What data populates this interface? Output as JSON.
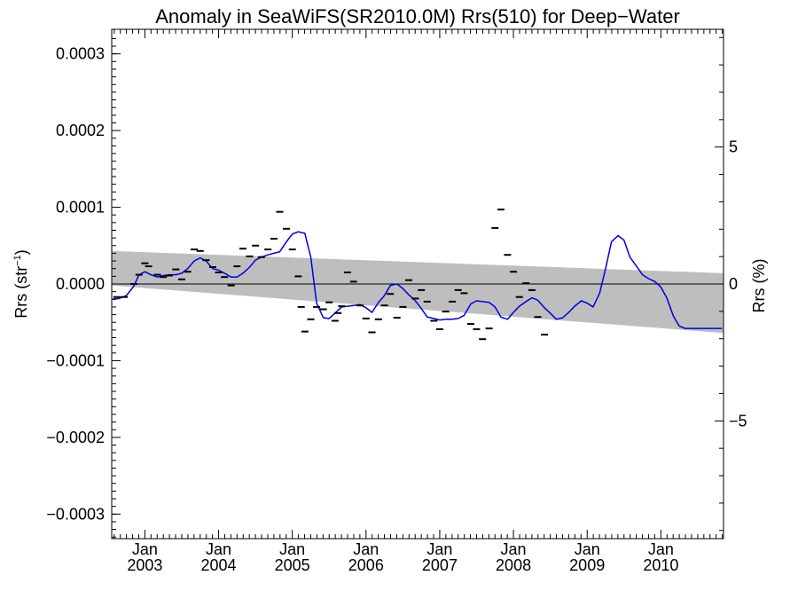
{
  "chart_data": {
    "type": "line",
    "title": "Anomaly in SeaWiFS(SR2010.0M) Rrs(510) for Deep−Water",
    "ylabel_left_main": "Rrs (str",
    "ylabel_left_sup": "−1",
    "ylabel_left_end": ")",
    "ylabel_right": "Rrs (%)",
    "x_tick_month": "Jan",
    "x_tick_years": [
      "2003",
      "2004",
      "2005",
      "2006",
      "2007",
      "2008",
      "2009",
      "2010"
    ],
    "y_left_ticks": [
      {
        "value": 0.0003,
        "label": "0.0003"
      },
      {
        "value": 0.0002,
        "label": "0.0002"
      },
      {
        "value": 0.0001,
        "label": "0.0001"
      },
      {
        "value": 0.0,
        "label": "0.0000"
      },
      {
        "value": -0.0001,
        "label": "−0.0001"
      },
      {
        "value": -0.0002,
        "label": "−0.0002"
      },
      {
        "value": -0.0003,
        "label": "−0.0003"
      }
    ],
    "y_right_ticks": [
      {
        "value": 5,
        "label": "5"
      },
      {
        "value": 0,
        "label": "0"
      },
      {
        "value": -5,
        "label": "−5"
      }
    ],
    "xlim": [
      2002.55,
      2010.85
    ],
    "ylim": [
      -0.000332,
      0.000332
    ],
    "y_right_lim": [
      -9.3,
      9.3
    ],
    "grid": false,
    "band": {
      "start": {
        "x": 2002.55,
        "upper": 4.3e-05,
        "lower": -2e-06
      },
      "end": {
        "x": 2010.85,
        "upper": 1.4e-05,
        "lower": -6.4e-05
      }
    },
    "zero_line": true,
    "series": [
      {
        "color": "#0000dd",
        "x": [
          2002.55,
          2002.65,
          2002.75,
          2002.85,
          2002.92,
          2003.0,
          2003.08,
          2003.17,
          2003.25,
          2003.33,
          2003.42,
          2003.5,
          2003.58,
          2003.67,
          2003.75,
          2003.83,
          2003.92,
          2004.0,
          2004.08,
          2004.17,
          2004.25,
          2004.33,
          2004.42,
          2004.5,
          2004.58,
          2004.67,
          2004.75,
          2004.83,
          2004.92,
          2005.0,
          2005.08,
          2005.17,
          2005.25,
          2005.33,
          2005.42,
          2005.5,
          2005.58,
          2005.67,
          2005.75,
          2005.83,
          2005.92,
          2006.0,
          2006.08,
          2006.17,
          2006.25,
          2006.33,
          2006.42,
          2006.5,
          2006.58,
          2006.67,
          2006.75,
          2006.83,
          2006.92,
          2007.0,
          2007.08,
          2007.17,
          2007.25,
          2007.33,
          2007.42,
          2007.5,
          2007.58,
          2007.67,
          2007.75,
          2007.83,
          2007.92,
          2008.0,
          2008.08,
          2008.17,
          2008.25,
          2008.33,
          2008.42,
          2008.5,
          2008.58,
          2008.67,
          2008.75,
          2008.83,
          2008.92,
          2009.0,
          2009.08,
          2009.17,
          2009.25,
          2009.33,
          2009.42,
          2009.5,
          2009.58,
          2009.67,
          2009.75,
          2009.83,
          2009.92,
          2010.0,
          2010.08,
          2010.17,
          2010.25,
          2010.33,
          2010.42,
          2010.5,
          2010.58,
          2010.67,
          2010.75,
          2010.83
        ],
        "y": [
          -2e-05,
          -1.9e-05,
          -1.5e-05,
          -3e-06,
          1.2e-05,
          1.6e-05,
          1.2e-05,
          9e-06,
          1.1e-05,
          1.2e-05,
          1.2e-05,
          1.4e-05,
          2e-05,
          3e-05,
          3.4e-05,
          3e-05,
          2e-05,
          1.8e-05,
          1.4e-05,
          9e-06,
          9e-06,
          1.4e-05,
          2.2e-05,
          3.1e-05,
          3.5e-05,
          3.8e-05,
          4e-05,
          4.2e-05,
          5.5e-05,
          6.5e-05,
          6.8e-05,
          6.6e-05,
          3.5e-05,
          -2.5e-05,
          -4.4e-05,
          -4.5e-05,
          -3.8e-05,
          -3e-05,
          -2.9e-05,
          -2.8e-05,
          -2.7e-05,
          -3.1e-05,
          -3.7e-05,
          -2.4e-05,
          -1.5e-05,
          -2e-06,
          0.0,
          -6e-06,
          -1.4e-05,
          -2.2e-05,
          -3.2e-05,
          -4.3e-05,
          -4.5e-05,
          -4.7e-05,
          -4.6e-05,
          -4.6e-05,
          -4.5e-05,
          -4.1e-05,
          -2.6e-05,
          -2.2e-05,
          -2.3e-05,
          -2.4e-05,
          -3e-05,
          -4.3e-05,
          -4.6e-05,
          -3.7e-05,
          -2.9e-05,
          -2.3e-05,
          -1.8e-05,
          -2.1e-05,
          -3.1e-05,
          -3.8e-05,
          -4.6e-05,
          -4.4e-05,
          -3.7e-05,
          -2.9e-05,
          -2.2e-05,
          -2.5e-05,
          -3e-05,
          -1.2e-05,
          2e-05,
          5.5e-05,
          6.3e-05,
          5.7e-05,
          3.5e-05,
          2.3e-05,
          1.2e-05,
          7e-06,
          3e-06,
          -4e-06,
          -1.8e-05,
          -4.2e-05,
          -5.5e-05,
          -5.8e-05,
          -5.8e-05,
          -5.8e-05,
          -5.8e-05,
          -5.8e-05,
          -5.8e-05,
          -5.8e-05
        ]
      },
      {
        "marker": "dash",
        "color": "#000000",
        "points": [
          [
            2002.62,
            -1.7e-05
          ],
          [
            2002.72,
            -1.7e-05
          ],
          [
            2002.85,
            0.0
          ],
          [
            2002.92,
            1.2e-05
          ],
          [
            2003.0,
            2.7e-05
          ],
          [
            2003.05,
            2.3e-05
          ],
          [
            2003.17,
            1.2e-05
          ],
          [
            2003.25,
            9e-06
          ],
          [
            2003.33,
            1.1e-05
          ],
          [
            2003.42,
            1.9e-05
          ],
          [
            2003.5,
            6e-06
          ],
          [
            2003.58,
            1.6e-05
          ],
          [
            2003.67,
            4.5e-05
          ],
          [
            2003.75,
            4.3e-05
          ],
          [
            2003.83,
            3.1e-05
          ],
          [
            2003.92,
            2.2e-05
          ],
          [
            2004.0,
            1.5e-05
          ],
          [
            2004.08,
            9e-06
          ],
          [
            2004.17,
            -2e-06
          ],
          [
            2004.25,
            2.3e-05
          ],
          [
            2004.33,
            4.6e-05
          ],
          [
            2004.42,
            3.6e-05
          ],
          [
            2004.5,
            5e-05
          ],
          [
            2004.58,
            3.5e-05
          ],
          [
            2004.67,
            4.5e-05
          ],
          [
            2004.75,
            5.9e-05
          ],
          [
            2004.83,
            9.4e-05
          ],
          [
            2004.92,
            7.2e-05
          ],
          [
            2005.0,
            4.5e-05
          ],
          [
            2005.08,
            1e-05
          ],
          [
            2005.12,
            -3e-05
          ],
          [
            2005.17,
            -6.2e-05
          ],
          [
            2005.25,
            -4.6e-05
          ],
          [
            2005.33,
            -3e-05
          ],
          [
            2005.42,
            -3.3e-05
          ],
          [
            2005.5,
            -2.4e-05
          ],
          [
            2005.58,
            -4.8e-05
          ],
          [
            2005.62,
            -3.8e-05
          ],
          [
            2005.67,
            -2.9e-05
          ],
          [
            2005.75,
            1.5e-05
          ],
          [
            2005.83,
            3e-06
          ],
          [
            2005.92,
            -2.8e-05
          ],
          [
            2006.0,
            -4.5e-05
          ],
          [
            2006.08,
            -6.3e-05
          ],
          [
            2006.17,
            -4.6e-05
          ],
          [
            2006.25,
            -2.8e-05
          ],
          [
            2006.33,
            -1.3e-05
          ],
          [
            2006.42,
            -4.4e-05
          ],
          [
            2006.5,
            -3e-05
          ],
          [
            2006.58,
            5e-06
          ],
          [
            2006.67,
            -1.9e-05
          ],
          [
            2006.75,
            -8e-06
          ],
          [
            2006.83,
            -2.3e-05
          ],
          [
            2006.92,
            -4.8e-05
          ],
          [
            2007.0,
            -5.9e-05
          ],
          [
            2007.08,
            -3.6e-05
          ],
          [
            2007.17,
            -2.3e-05
          ],
          [
            2007.25,
            -8e-06
          ],
          [
            2007.33,
            -1.2e-05
          ],
          [
            2007.42,
            -5.2e-05
          ],
          [
            2007.5,
            -5.9e-05
          ],
          [
            2007.58,
            -7.2e-05
          ],
          [
            2007.67,
            -5.8e-05
          ],
          [
            2007.75,
            7.3e-05
          ],
          [
            2007.83,
            9.7e-05
          ],
          [
            2007.92,
            3.8e-05
          ],
          [
            2008.0,
            1.6e-05
          ],
          [
            2008.08,
            -1.7e-05
          ],
          [
            2008.17,
            1e-06
          ],
          [
            2008.25,
            -8e-06
          ],
          [
            2008.33,
            -4.3e-05
          ],
          [
            2008.42,
            -6.6e-05
          ]
        ]
      }
    ]
  }
}
